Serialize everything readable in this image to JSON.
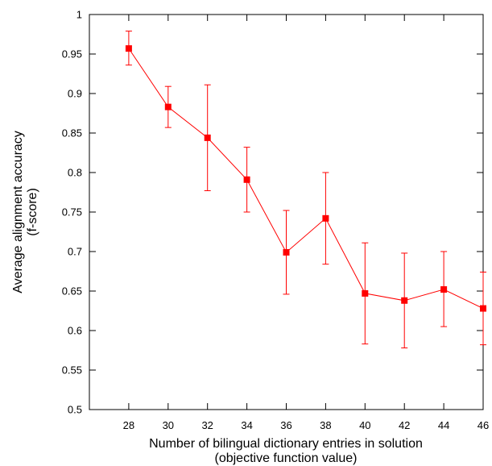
{
  "chart_data": {
    "type": "line",
    "xlabel_lines": [
      "Number of bilingual dictionary entries in solution",
      "(objective function value)"
    ],
    "ylabel_lines": [
      "Average alignment accuracy",
      "(f-score)"
    ],
    "xlim": [
      26,
      46
    ],
    "ylim": [
      0.5,
      1
    ],
    "xticks": [
      28,
      30,
      32,
      34,
      36,
      38,
      40,
      42,
      44,
      46
    ],
    "yticks": [
      0.5,
      0.55,
      0.6,
      0.65,
      0.7,
      0.75,
      0.8,
      0.85,
      0.9,
      0.95,
      1
    ],
    "grid": false,
    "series": [
      {
        "color": "#ff0000",
        "marker": "square",
        "x": [
          28,
          30,
          32,
          34,
          36,
          38,
          40,
          42,
          44,
          46
        ],
        "y": [
          0.957,
          0.883,
          0.844,
          0.791,
          0.699,
          0.742,
          0.647,
          0.638,
          0.652,
          0.628
        ],
        "err_low": [
          0.936,
          0.857,
          0.777,
          0.75,
          0.646,
          0.684,
          0.583,
          0.578,
          0.605,
          0.582
        ],
        "err_high": [
          0.979,
          0.909,
          0.911,
          0.832,
          0.752,
          0.8,
          0.711,
          0.698,
          0.7,
          0.674
        ]
      }
    ]
  }
}
